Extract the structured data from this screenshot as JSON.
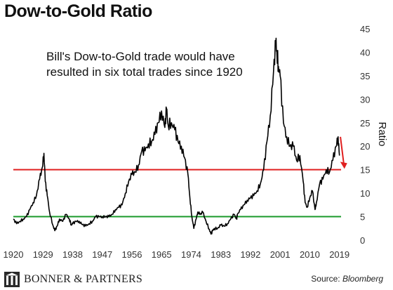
{
  "title": "Dow-to-Gold Ratio",
  "annotation": [
    "Bill's Dow-to-Gold trade would have",
    "resulted in six total trades since 1920"
  ],
  "footer": {
    "brand": "BONNER & PARTNERS",
    "source_label": "Source: ",
    "source_name": "Bloomberg"
  },
  "chart_data": {
    "type": "line",
    "title": "Dow-to-Gold Ratio",
    "xlabel": "",
    "ylabel": "Ratio",
    "xlim": [
      1920,
      2019.5
    ],
    "ylim": [
      0,
      45
    ],
    "x_ticks": [
      "1920",
      "1929",
      "1938",
      "1947",
      "1956",
      "1965",
      "1974",
      "1983",
      "1992",
      "2001",
      "2010",
      "2019"
    ],
    "y_ticks": [
      "0",
      "5",
      "10",
      "15",
      "20",
      "25",
      "30",
      "35",
      "40",
      "45"
    ],
    "y_axis_position": "right",
    "grid": false,
    "reference_lines": [
      {
        "y": 15,
        "color": "#e02020"
      },
      {
        "y": 5,
        "color": "#1a9a2a"
      }
    ],
    "arrow": {
      "from": [
        2019.3,
        22
      ],
      "to": [
        2020.3,
        15.5
      ],
      "color": "#e02020"
    },
    "series": [
      {
        "color": "#000000",
        "x": [
          1920,
          1921,
          1922,
          1923,
          1924,
          1925,
          1926,
          1927,
          1928,
          1928.8,
          1929.3,
          1929.7,
          1930.3,
          1931,
          1932,
          1932.6,
          1933.3,
          1934,
          1935,
          1936,
          1937,
          1937.6,
          1938,
          1939,
          1940,
          1941,
          1942,
          1943,
          1944,
          1945,
          1946,
          1947,
          1948,
          1949,
          1950,
          1951,
          1952,
          1953,
          1954,
          1955,
          1956,
          1957,
          1958,
          1959,
          1960,
          1961,
          1962,
          1963,
          1964,
          1965,
          1966,
          1966.5,
          1967,
          1968,
          1969,
          1970,
          1971,
          1972,
          1973,
          1973.6,
          1974.2,
          1974.8,
          1975.5,
          1976,
          1976.8,
          1977.5,
          1978.5,
          1979.5,
          1980,
          1980.5,
          1981,
          1982,
          1983,
          1984,
          1985,
          1986,
          1987,
          1987.8,
          1988,
          1989,
          1990,
          1991,
          1992,
          1993,
          1994,
          1995,
          1996,
          1997,
          1998,
          1999,
          1999.7,
          2000,
          2000.5,
          2001,
          2002,
          2003,
          2004,
          2005,
          2006,
          2007,
          2008,
          2008.6,
          2009.2,
          2010,
          2010.8,
          2011.6,
          2012,
          2013,
          2014,
          2015,
          2016,
          2017,
          2018,
          2018.6,
          2019
        ],
        "values": [
          4.5,
          3.5,
          4.0,
          4.5,
          5.0,
          6.5,
          8.0,
          9.5,
          13.0,
          15.5,
          18.5,
          12.5,
          9.5,
          6.0,
          3.2,
          2.0,
          3.0,
          4.5,
          4.0,
          5.5,
          4.5,
          3.2,
          3.5,
          4.0,
          4.0,
          3.3,
          3.0,
          3.5,
          4.0,
          5.0,
          5.0,
          5.0,
          5.0,
          5.0,
          5.5,
          6.5,
          7.0,
          7.5,
          10.0,
          12.5,
          14.0,
          14.5,
          16.0,
          19.0,
          19.0,
          20.5,
          21.0,
          22.5,
          25.0,
          27.5,
          24.0,
          28.0,
          24.5,
          25.0,
          23.5,
          21.0,
          20.0,
          17.5,
          14.0,
          9.0,
          5.0,
          2.5,
          4.5,
          6.0,
          5.5,
          6.0,
          4.0,
          2.3,
          1.3,
          2.0,
          2.5,
          2.5,
          3.2,
          3.0,
          3.5,
          4.5,
          5.5,
          4.5,
          5.5,
          6.5,
          7.5,
          8.5,
          9.0,
          9.5,
          10.5,
          12.0,
          15.0,
          21.0,
          26.5,
          36.0,
          42.0,
          40.0,
          37.0,
          35.0,
          25.0,
          22.0,
          20.0,
          20.0,
          17.0,
          18.0,
          12.5,
          8.0,
          7.0,
          9.0,
          10.5,
          6.5,
          8.0,
          12.0,
          13.0,
          15.0,
          14.5,
          17.0,
          20.0,
          22.0,
          18.0
        ]
      }
    ]
  }
}
